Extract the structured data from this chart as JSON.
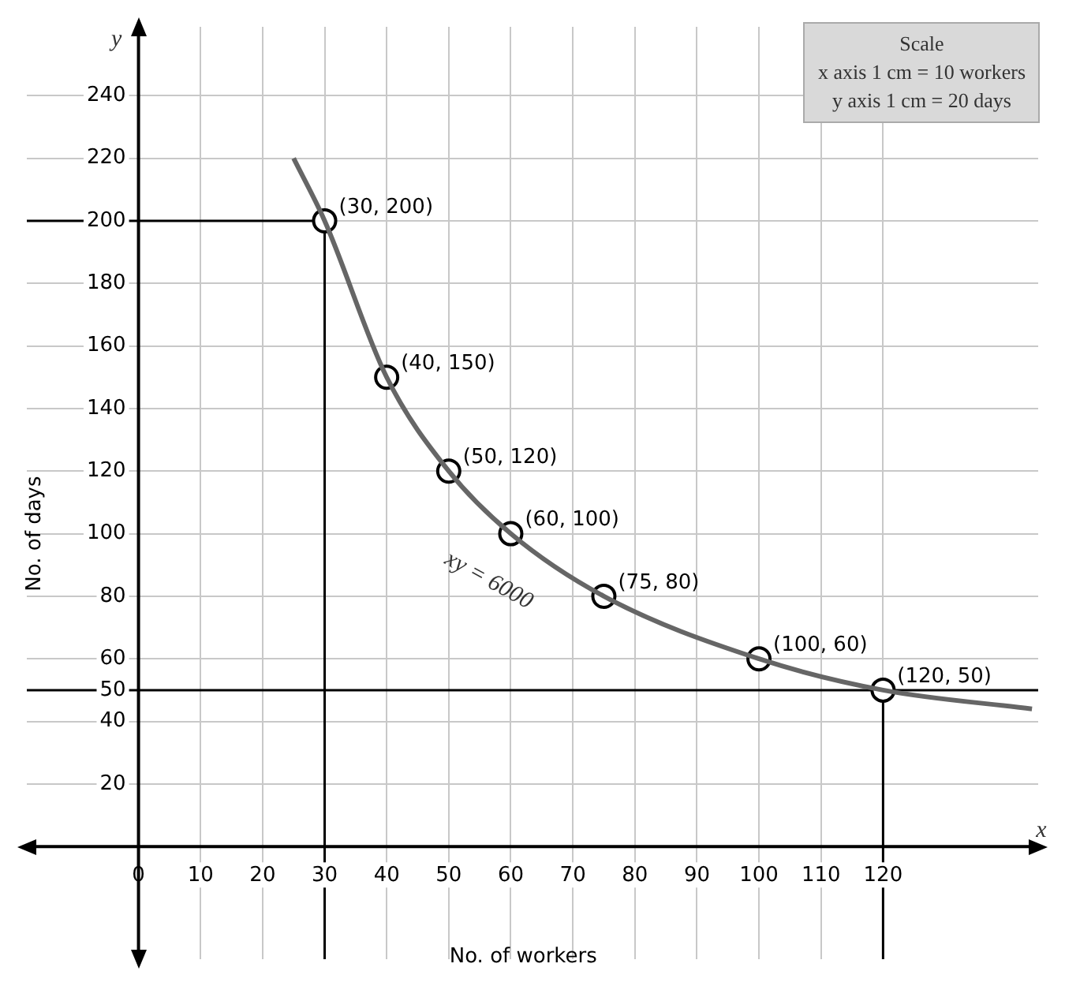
{
  "chart_data": {
    "type": "scatter",
    "xlabel": "No. of workers",
    "ylabel": "No. of days",
    "xlim": [
      -18,
      145
    ],
    "ylim": [
      -36,
      262
    ],
    "xticks": [
      0,
      10,
      20,
      30,
      40,
      50,
      60,
      70,
      80,
      90,
      100,
      110,
      120
    ],
    "yticks": [
      20,
      40,
      50,
      60,
      80,
      100,
      120,
      140,
      160,
      180,
      200,
      220,
      240
    ],
    "grid": true,
    "series": [
      {
        "type": "line",
        "x": [
          25,
          30,
          40,
          50,
          60,
          75,
          100,
          120,
          144
        ],
        "values": [
          220,
          200,
          150,
          120,
          100,
          80,
          60,
          50,
          44
        ],
        "color": "#666666"
      },
      {
        "type": "scatter",
        "x": [
          30,
          40,
          50,
          60,
          75,
          100,
          120
        ],
        "values": [
          200,
          150,
          120,
          100,
          80,
          60,
          50
        ],
        "color": "#000000",
        "marker": "circle",
        "value_labels": [
          "(30, 200)",
          "(40, 150)",
          "(50, 120)",
          "(60, 100)",
          "(75, 80)",
          "(100, 60)",
          "(120, 50)"
        ]
      },
      {
        "type": "line",
        "x": [
          -18,
          30
        ],
        "values": [
          200,
          200
        ],
        "color": "#000000"
      },
      {
        "type": "line",
        "x": [
          30,
          30
        ],
        "values": [
          200,
          -36
        ],
        "color": "#000000"
      },
      {
        "type": "line",
        "x": [
          -18,
          145
        ],
        "values": [
          50,
          50
        ],
        "color": "#000000"
      },
      {
        "type": "line",
        "x": [
          120,
          120
        ],
        "values": [
          -36,
          50
        ],
        "color": "#000000"
      }
    ],
    "annotations": [
      "Scale",
      "x axis 1 cm = 10 workers",
      "y axis 1 cm = 20 days",
      "xy = 6000",
      "x",
      "y"
    ]
  }
}
